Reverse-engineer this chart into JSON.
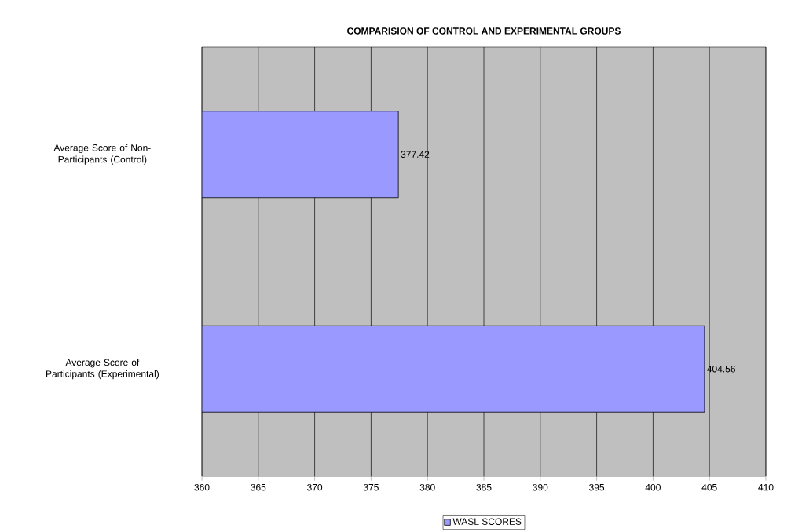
{
  "chart_data": {
    "type": "bar",
    "orientation": "horizontal",
    "title": "COMPARISION OF CONTROL AND EXPERIMENTAL GROUPS",
    "categories": [
      "Average Score of  Non-Participants (Control)",
      "Average Score of  Participants (Experimental)"
    ],
    "series": [
      {
        "name": "WASL SCORES",
        "color": "#9999ff",
        "values": [
          377.42,
          404.56
        ],
        "value_labels": [
          "377.42",
          "404.56"
        ]
      }
    ],
    "xlim": [
      360,
      410
    ],
    "xticks": [
      360,
      365,
      370,
      375,
      380,
      385,
      390,
      395,
      400,
      405,
      410
    ],
    "grid": "x",
    "legend": "bottom"
  }
}
